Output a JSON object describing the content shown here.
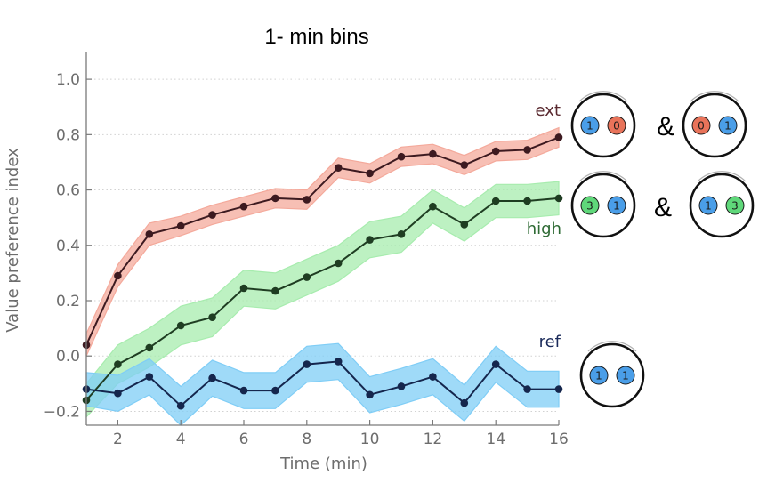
{
  "chart_data": {
    "type": "line",
    "title": "1- min bins",
    "xlabel": "Time (min)",
    "ylabel": "Value preference index",
    "xlim": [
      1,
      16
    ],
    "ylim": [
      -0.25,
      1.1
    ],
    "xticks": [
      2,
      4,
      6,
      8,
      10,
      12,
      14,
      16
    ],
    "yticks": [
      -0.2,
      0.0,
      0.2,
      0.4,
      0.6,
      0.8,
      1.0
    ],
    "ytick_labels": [
      "−0.2",
      "0.0",
      "0.2",
      "0.4",
      "0.6",
      "0.8",
      "1.0"
    ],
    "grid": "horizontal dotted",
    "x": [
      1,
      2,
      3,
      4,
      5,
      6,
      7,
      8,
      9,
      10,
      11,
      12,
      13,
      14,
      15,
      16
    ],
    "series": [
      {
        "name": "ext",
        "values": [
          0.04,
          0.29,
          0.44,
          0.47,
          0.51,
          0.54,
          0.57,
          0.565,
          0.68,
          0.66,
          0.72,
          0.73,
          0.69,
          0.74,
          0.745,
          0.79
        ],
        "error": [
          0.04,
          0.04,
          0.04,
          0.035,
          0.035,
          0.035,
          0.035,
          0.035,
          0.035,
          0.035,
          0.035,
          0.035,
          0.035,
          0.035,
          0.035,
          0.035
        ],
        "line_color": "#3d1a20",
        "band_color": "#f4a99b",
        "label_color": "#5a2a30",
        "icons": [
          [
            "1",
            "0"
          ],
          [
            "0",
            "1"
          ]
        ]
      },
      {
        "name": "high",
        "values": [
          -0.16,
          -0.03,
          0.03,
          0.11,
          0.14,
          0.245,
          0.235,
          0.285,
          0.335,
          0.42,
          0.44,
          0.54,
          0.475,
          0.56,
          0.56,
          0.57
        ],
        "error": [
          0.06,
          0.07,
          0.07,
          0.07,
          0.07,
          0.065,
          0.065,
          0.065,
          0.065,
          0.065,
          0.065,
          0.06,
          0.06,
          0.06,
          0.06,
          0.06
        ],
        "line_color": "#1f3d22",
        "band_color": "#a7ecae",
        "label_color": "#2e6a34",
        "icons": [
          [
            "3",
            "1"
          ],
          [
            "1",
            "3"
          ]
        ]
      },
      {
        "name": "ref",
        "values": [
          -0.12,
          -0.135,
          -0.075,
          -0.18,
          -0.08,
          -0.125,
          -0.125,
          -0.03,
          -0.02,
          -0.14,
          -0.11,
          -0.075,
          -0.17,
          -0.03,
          -0.12,
          -0.12
        ],
        "error": [
          0.06,
          0.065,
          0.065,
          0.07,
          0.065,
          0.065,
          0.065,
          0.065,
          0.065,
          0.065,
          0.065,
          0.065,
          0.065,
          0.065,
          0.065,
          0.065
        ],
        "line_color": "#15264d",
        "band_color": "#7fcdf6",
        "label_color": "#1a2a5a",
        "icons": [
          [
            "1",
            "1"
          ]
        ]
      }
    ],
    "icon_separator": "&",
    "ball_colors": {
      "0": "#e8735a",
      "1": "#4a9ee8",
      "3": "#5fd87a"
    }
  }
}
